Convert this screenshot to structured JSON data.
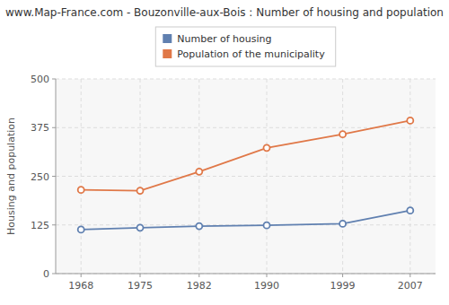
{
  "chart_data": {
    "type": "line",
    "title": "www.Map-France.com - Bouzonville-aux-Bois : Number of housing and population",
    "ylabel": "Housing and population",
    "x": [
      1968,
      1975,
      1982,
      1990,
      1999,
      2007
    ],
    "series": [
      {
        "name": "Number of housing",
        "color": "#6080b0",
        "marker": "circle",
        "line_style": "solid",
        "values": [
          113,
          118,
          122,
          124,
          128,
          162
        ]
      },
      {
        "name": "Population of the municipality",
        "color": "#e07848",
        "marker": "circle",
        "line_style": "solid",
        "values": [
          215,
          213,
          262,
          323,
          358,
          393
        ]
      }
    ],
    "xlim": [
      1965,
      2010
    ],
    "xticks": [
      1968,
      1975,
      1982,
      1990,
      1999,
      2007
    ],
    "ylim": [
      0,
      500
    ],
    "yticks": [
      0,
      125,
      250,
      375,
      500
    ],
    "grid": true,
    "legend": "top"
  }
}
